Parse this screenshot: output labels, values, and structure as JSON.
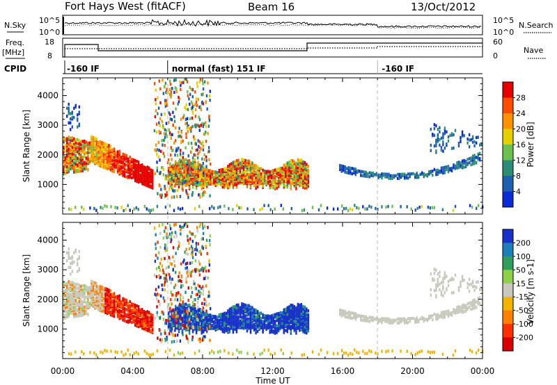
{
  "header": {
    "station": "Fort Hays West (fitACF)",
    "beam": "Beam 16",
    "date": "13/Oct/2012"
  },
  "side_labels": {
    "nsky": "N.Sky",
    "freq_line1": "Freq.",
    "freq_line2": "[MHz]",
    "cpid": "CPID",
    "nsearch": "N.Search",
    "nave": "Nave"
  },
  "noise_panel": {
    "left_ticks": [
      "10^5",
      "10^0"
    ],
    "right_ticks": [
      "10^5",
      "10^0"
    ]
  },
  "freq_panel": {
    "left_ticks": [
      "18",
      "8"
    ],
    "right_ticks": [
      "60",
      "0"
    ]
  },
  "cpid_segments": [
    {
      "label": "-160 IF",
      "start_hour": 0
    },
    {
      "label": "normal (fast) 151 IF",
      "start_hour": 6
    },
    {
      "label": "-160 IF",
      "start_hour": 18
    }
  ],
  "colors": {
    "power": [
      "#0a2bd6",
      "#1f5fb0",
      "#2d8c78",
      "#6cc050",
      "#e6cf00",
      "#ff9000",
      "#ff4b00",
      "#e60000"
    ],
    "velocity": [
      "#1730c8",
      "#1e7fb8",
      "#2e9e5a",
      "#8ed04a",
      "#c8c8bc",
      "#f2b400",
      "#ff8000",
      "#ff3000",
      "#d80000"
    ]
  },
  "chart_data": [
    {
      "type": "heatmap",
      "name": "power",
      "ylabel": "Slant Range [km]",
      "y_ticks": [
        "1000",
        "2000",
        "3000",
        "4000"
      ],
      "ylim": [
        0,
        4600
      ],
      "xlim": [
        0,
        24
      ],
      "colorbar_label": "Power [dB]",
      "colorbar_ticks": [
        "4",
        "8",
        "12",
        "16",
        "20",
        "24",
        "28"
      ],
      "colorbar_range": [
        0,
        32
      ]
    },
    {
      "type": "heatmap",
      "name": "velocity",
      "ylabel": "Slant Range [km]",
      "y_ticks": [
        "1000",
        "2000",
        "3000",
        "4000"
      ],
      "ylim": [
        0,
        4600
      ],
      "xlim": [
        0,
        24
      ],
      "colorbar_label": "Velocity [m s-1]",
      "colorbar_ticks": [
        "200",
        "100",
        "50",
        "15",
        "-15",
        "-50",
        "-100",
        "-200"
      ],
      "x_ticks": [
        "00:00",
        "04:00",
        "08:00",
        "12:00",
        "16:00",
        "20:00",
        "00:00"
      ],
      "xlabel": "Time UT"
    }
  ]
}
